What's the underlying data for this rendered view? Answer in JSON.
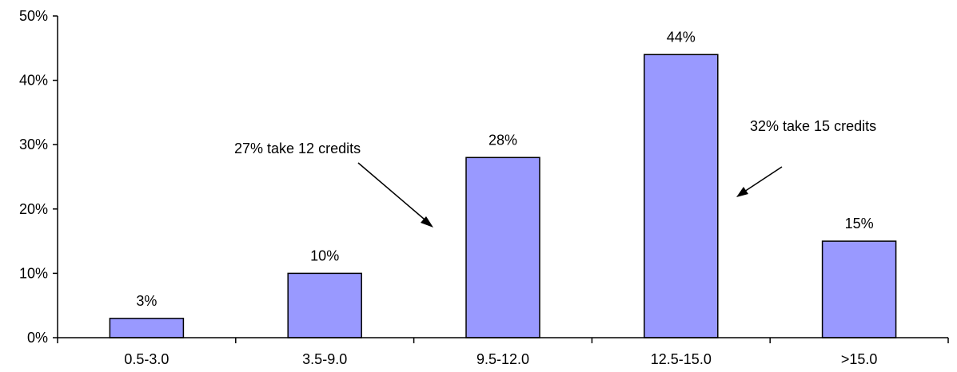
{
  "chart_data": {
    "type": "bar",
    "categories": [
      "0.5-3.0",
      "3.5-9.0",
      "9.5-12.0",
      "12.5-15.0",
      ">15.0"
    ],
    "values": [
      3,
      10,
      28,
      44,
      15
    ],
    "data_labels": [
      "3%",
      "10%",
      "28%",
      "44%",
      "15%"
    ],
    "ylim": [
      0,
      50
    ],
    "yticks": [
      0,
      10,
      20,
      30,
      40,
      50
    ],
    "ytick_labels": [
      "0%",
      "10%",
      "20%",
      "30%",
      "40%",
      "50%"
    ],
    "title": "",
    "xlabel": "",
    "ylabel": "",
    "grid": false,
    "bar_color": "#9999ff",
    "bar_edge_color": "#000000",
    "annotations": [
      {
        "text": "27% take 12 credits",
        "points_to": "9.5-12.0"
      },
      {
        "text": "32% take 15 credits",
        "points_to": "12.5-15.0"
      }
    ]
  }
}
